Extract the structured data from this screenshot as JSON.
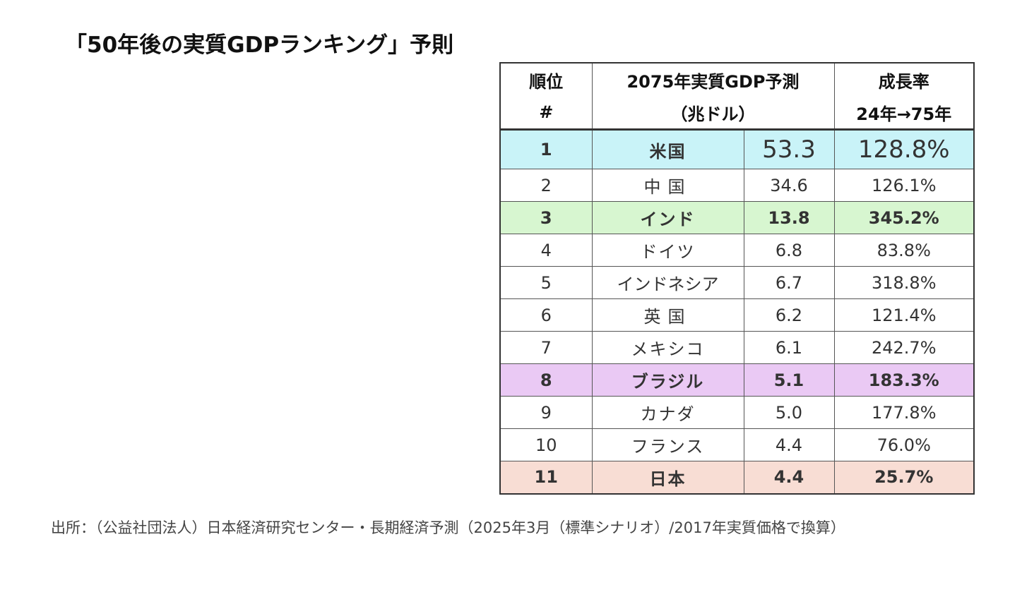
{
  "title": "「50年後の実質GDPランキング」予則",
  "table": {
    "header": {
      "rank_line1": "順位",
      "rank_line2": "#",
      "gdp_line1": "2075年実質GDP予測",
      "gdp_line2": "（兆ドル）",
      "growth_line1": "成長率",
      "growth_line2": "24年→75年"
    },
    "rows": [
      {
        "rank": "1",
        "country": "米国",
        "gdp": "53.3",
        "growth": "128.8%"
      },
      {
        "rank": "2",
        "country": "中国",
        "gdp": "34.6",
        "growth": "126.1%"
      },
      {
        "rank": "3",
        "country": "インド",
        "gdp": "13.8",
        "growth": "345.2%"
      },
      {
        "rank": "4",
        "country": "ドイツ",
        "gdp": "6.8",
        "growth": "83.8%"
      },
      {
        "rank": "5",
        "country": "インドネシア",
        "gdp": "6.7",
        "growth": "318.8%"
      },
      {
        "rank": "6",
        "country": "英国",
        "gdp": "6.2",
        "growth": "121.4%"
      },
      {
        "rank": "7",
        "country": "メキシコ",
        "gdp": "6.1",
        "growth": "242.7%"
      },
      {
        "rank": "8",
        "country": "ブラジル",
        "gdp": "5.1",
        "growth": "183.3%"
      },
      {
        "rank": "9",
        "country": "カナダ",
        "gdp": "5.0",
        "growth": "177.8%"
      },
      {
        "rank": "10",
        "country": "フランス",
        "gdp": "4.4",
        "growth": "76.0%"
      },
      {
        "rank": "11",
        "country": "日本",
        "gdp": "4.4",
        "growth": "25.7%"
      }
    ]
  },
  "highlight_colors": {
    "rank_1": "#c9f3f8",
    "rank_3": "#d7f6d0",
    "rank_8": "#eac9f4",
    "rank_11": "#f8ddd4",
    "rank_1_text": "#3a3ad6",
    "rank_11_text": "#e0102a"
  },
  "source": "出所：（公益社団法人）日本経済研究センター・長期経済予測（2025年3月（標準シナリオ）/2017年実質価格で換算）"
}
